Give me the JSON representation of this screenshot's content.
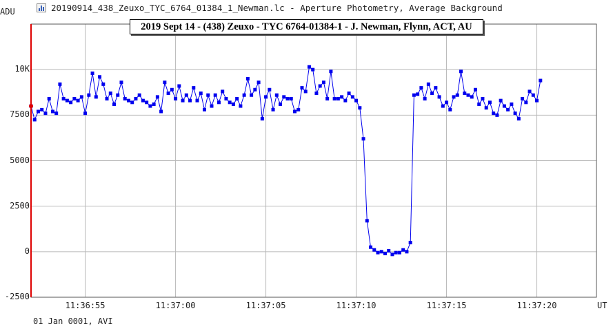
{
  "window": {
    "title": "20190914_438_Zeuxo_TYC_6764_01384_1_Newman.lc - Aperture Photometry, Average Background",
    "icon": "chart-icon"
  },
  "footer": "01 Jan 0001, AVI",
  "chart_data": {
    "type": "line",
    "title": "2019 Sept 14 - (438) Zeuxo - TYC 6764-01384-1 - J. Newman, Flynn, ACT, AU",
    "ylabel": "ADU",
    "xlabel": "UT",
    "ylim": [
      -2500,
      12500
    ],
    "xlim": [
      52.0,
      83.3
    ],
    "y_ticks": [
      -2500,
      0,
      2500,
      5000,
      7500,
      10000
    ],
    "y_tick_labels": [
      "-2500",
      "0",
      "2500",
      "5000",
      "7500",
      "10K"
    ],
    "x_ticks": [
      55,
      60,
      65,
      70,
      75,
      80
    ],
    "x_tick_labels": [
      "11:36:55",
      "11:37:00",
      "11:37:05",
      "11:37:10",
      "11:37:15",
      "11:37:20"
    ],
    "grid": true,
    "cursor_x": 52.0,
    "series": [
      {
        "color": "#0000ee",
        "values": [
          [
            52.0,
            8000
          ],
          [
            52.2,
            7250
          ],
          [
            52.4,
            7700
          ],
          [
            52.6,
            7800
          ],
          [
            52.8,
            7600
          ],
          [
            53.0,
            8400
          ],
          [
            53.2,
            7700
          ],
          [
            53.4,
            7600
          ],
          [
            53.6,
            9200
          ],
          [
            53.8,
            8400
          ],
          [
            54.0,
            8300
          ],
          [
            54.2,
            8200
          ],
          [
            54.4,
            8400
          ],
          [
            54.6,
            8300
          ],
          [
            54.8,
            8500
          ],
          [
            55.0,
            7600
          ],
          [
            55.2,
            8600
          ],
          [
            55.4,
            9800
          ],
          [
            55.6,
            8500
          ],
          [
            55.8,
            9600
          ],
          [
            56.0,
            9200
          ],
          [
            56.2,
            8400
          ],
          [
            56.4,
            8700
          ],
          [
            56.6,
            8100
          ],
          [
            56.8,
            8600
          ],
          [
            57.0,
            9300
          ],
          [
            57.2,
            8400
          ],
          [
            57.4,
            8300
          ],
          [
            57.6,
            8200
          ],
          [
            57.8,
            8400
          ],
          [
            58.0,
            8600
          ],
          [
            58.2,
            8300
          ],
          [
            58.4,
            8200
          ],
          [
            58.6,
            8000
          ],
          [
            58.8,
            8100
          ],
          [
            59.0,
            8500
          ],
          [
            59.2,
            7700
          ],
          [
            59.4,
            9300
          ],
          [
            59.6,
            8700
          ],
          [
            59.8,
            8900
          ],
          [
            60.0,
            8400
          ],
          [
            60.2,
            9100
          ],
          [
            60.4,
            8300
          ],
          [
            60.6,
            8600
          ],
          [
            60.8,
            8300
          ],
          [
            61.0,
            9000
          ],
          [
            61.2,
            8300
          ],
          [
            61.4,
            8700
          ],
          [
            61.6,
            7800
          ],
          [
            61.8,
            8600
          ],
          [
            62.0,
            8000
          ],
          [
            62.2,
            8600
          ],
          [
            62.4,
            8200
          ],
          [
            62.6,
            8800
          ],
          [
            62.8,
            8400
          ],
          [
            63.0,
            8200
          ],
          [
            63.2,
            8100
          ],
          [
            63.4,
            8400
          ],
          [
            63.6,
            8000
          ],
          [
            63.8,
            8600
          ],
          [
            64.0,
            9500
          ],
          [
            64.2,
            8600
          ],
          [
            64.4,
            8900
          ],
          [
            64.6,
            9300
          ],
          [
            64.8,
            7300
          ],
          [
            65.0,
            8500
          ],
          [
            65.2,
            8900
          ],
          [
            65.4,
            7800
          ],
          [
            65.6,
            8600
          ],
          [
            65.8,
            8100
          ],
          [
            66.0,
            8500
          ],
          [
            66.2,
            8400
          ],
          [
            66.4,
            8400
          ],
          [
            66.6,
            7700
          ],
          [
            66.8,
            7800
          ],
          [
            67.0,
            9000
          ],
          [
            67.2,
            8800
          ],
          [
            67.4,
            10150
          ],
          [
            67.6,
            10000
          ],
          [
            67.8,
            8700
          ],
          [
            68.0,
            9100
          ],
          [
            68.2,
            9300
          ],
          [
            68.4,
            8400
          ],
          [
            68.6,
            9900
          ],
          [
            68.8,
            8400
          ],
          [
            69.0,
            8400
          ],
          [
            69.2,
            8500
          ],
          [
            69.4,
            8300
          ],
          [
            69.6,
            8700
          ],
          [
            69.8,
            8500
          ],
          [
            70.0,
            8300
          ],
          [
            70.2,
            7900
          ],
          [
            70.4,
            6200
          ],
          [
            70.6,
            1700
          ],
          [
            70.8,
            250
          ],
          [
            71.0,
            100
          ],
          [
            71.2,
            -50
          ],
          [
            71.4,
            0
          ],
          [
            71.6,
            -100
          ],
          [
            71.8,
            50
          ],
          [
            72.0,
            -150
          ],
          [
            72.2,
            -50
          ],
          [
            72.4,
            -50
          ],
          [
            72.6,
            100
          ],
          [
            72.8,
            0
          ],
          [
            73.0,
            500
          ],
          [
            73.2,
            8600
          ],
          [
            73.4,
            8650
          ],
          [
            73.6,
            9000
          ],
          [
            73.8,
            8400
          ],
          [
            74.0,
            9200
          ],
          [
            74.2,
            8700
          ],
          [
            74.4,
            9000
          ],
          [
            74.6,
            8500
          ],
          [
            74.8,
            8000
          ],
          [
            75.0,
            8200
          ],
          [
            75.2,
            7800
          ],
          [
            75.4,
            8500
          ],
          [
            75.6,
            8600
          ],
          [
            75.8,
            9900
          ],
          [
            76.0,
            8700
          ],
          [
            76.2,
            8600
          ],
          [
            76.4,
            8500
          ],
          [
            76.6,
            8900
          ],
          [
            76.8,
            8100
          ],
          [
            77.0,
            8400
          ],
          [
            77.2,
            7900
          ],
          [
            77.4,
            8200
          ],
          [
            77.6,
            7600
          ],
          [
            77.8,
            7500
          ],
          [
            78.0,
            8300
          ],
          [
            78.2,
            8000
          ],
          [
            78.4,
            7800
          ],
          [
            78.6,
            8100
          ],
          [
            78.8,
            7600
          ],
          [
            79.0,
            7300
          ],
          [
            79.2,
            8400
          ],
          [
            79.4,
            8200
          ],
          [
            79.6,
            8800
          ],
          [
            79.8,
            8600
          ],
          [
            80.0,
            8300
          ],
          [
            80.2,
            9400
          ]
        ]
      },
      {
        "color": "#ee00ee",
        "values": []
      },
      {
        "color": "#000044",
        "values": []
      },
      {
        "color": "#007700",
        "values": []
      }
    ]
  }
}
